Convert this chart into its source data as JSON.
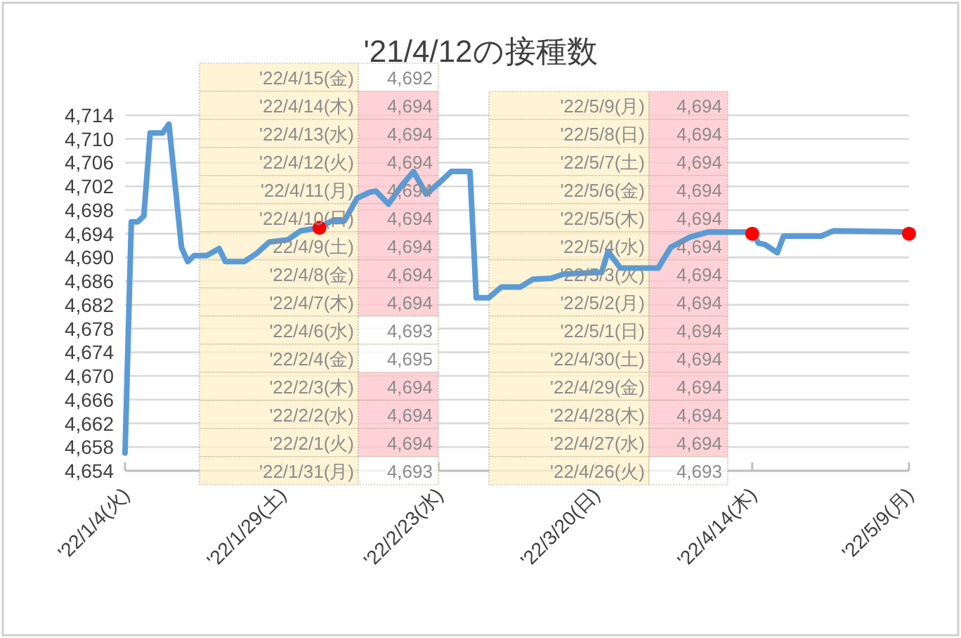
{
  "chart_data": [
    {
      "type": "line",
      "title": "'21/4/12の接種数",
      "xlim": [
        "2022-01-04",
        "2022-05-09"
      ],
      "xticks": [
        {
          "value": "2022-01-04",
          "label": "'22/1/4(火)"
        },
        {
          "value": "2022-01-29",
          "label": "'22/1/29(土)"
        },
        {
          "value": "2022-02-23",
          "label": "'22/2/23(水)"
        },
        {
          "value": "2022-03-20",
          "label": "'22/3/20(日)"
        },
        {
          "value": "2022-04-14",
          "label": "'22/4/14(木)"
        },
        {
          "value": "2022-05-09",
          "label": "'22/5/9(月)"
        }
      ],
      "ylim": [
        4654,
        4714
      ],
      "yticks": [
        {
          "value": 4654,
          "label": "4,654"
        },
        {
          "value": 4658,
          "label": "4,658"
        },
        {
          "value": 4662,
          "label": "4,662"
        },
        {
          "value": 4666,
          "label": "4,666"
        },
        {
          "value": 4670,
          "label": "4,670"
        },
        {
          "value": 4674,
          "label": "4,674"
        },
        {
          "value": 4678,
          "label": "4,678"
        },
        {
          "value": 4682,
          "label": "4,682"
        },
        {
          "value": 4686,
          "label": "4,686"
        },
        {
          "value": 4690,
          "label": "4,690"
        },
        {
          "value": 4694,
          "label": "4,694"
        },
        {
          "value": 4698,
          "label": "4,698"
        },
        {
          "value": 4702,
          "label": "4,702"
        },
        {
          "value": 4706,
          "label": "4,706"
        },
        {
          "value": 4710,
          "label": "4,710"
        },
        {
          "value": 4714,
          "label": "4,714"
        }
      ],
      "grid": "y",
      "series": [
        {
          "color": "#5b9bd5",
          "x": [
            "2022-01-04",
            "2022-01-05",
            "2022-01-06",
            "2022-01-07",
            "2022-01-08",
            "2022-01-10",
            "2022-01-11",
            "2022-01-13",
            "2022-01-14",
            "2022-01-15",
            "2022-01-17",
            "2022-01-19",
            "2022-01-20",
            "2022-01-23",
            "2022-01-25",
            "2022-01-27",
            "2022-01-30",
            "2022-02-01",
            "2022-02-04",
            "2022-02-06",
            "2022-02-08",
            "2022-02-10",
            "2022-02-12",
            "2022-02-13",
            "2022-02-15",
            "2022-02-17",
            "2022-02-19",
            "2022-02-21",
            "2022-02-23",
            "2022-02-25",
            "2022-02-28",
            "2022-03-01",
            "2022-03-03",
            "2022-03-05",
            "2022-03-08",
            "2022-03-10",
            "2022-03-13",
            "2022-03-15",
            "2022-03-21",
            "2022-03-22",
            "2022-03-24",
            "2022-03-30",
            "2022-04-01",
            "2022-04-04",
            "2022-04-07",
            "2022-04-14",
            "2022-04-15",
            "2022-04-16",
            "2022-04-18",
            "2022-04-19",
            "2022-04-25",
            "2022-04-27",
            "2022-05-09"
          ],
          "values": [
            4657,
            4696,
            4696,
            4697,
            4711,
            4711,
            4712.5,
            4691.7,
            4689.3,
            4690.3,
            4690.3,
            4691.5,
            4689.3,
            4689.3,
            4690.7,
            4692.6,
            4693,
            4694.5,
            4695,
            4696.2,
            4696.2,
            4700,
            4701,
            4701.2,
            4699,
            4702,
            4704.5,
            4700.7,
            4702.5,
            4704.5,
            4704.5,
            4683.2,
            4683.2,
            4685,
            4685,
            4686.3,
            4686.5,
            4687.2,
            4687.5,
            4691,
            4688.2,
            4688.2,
            4691.7,
            4693.4,
            4694.3,
            4694.3,
            4692.4,
            4692.2,
            4690.8,
            4693.6,
            4693.6,
            4694.5,
            4694.3
          ]
        },
        {
          "type": "scatter",
          "color": "#ff0000",
          "marker": "circle",
          "x": [
            "2022-02-04",
            "2022-04-14",
            "2022-05-09"
          ],
          "values": [
            4695,
            4694,
            4694
          ]
        }
      ]
    },
    {
      "type": "other",
      "annotations": [
        "'22/4/15(金)",
        "4,692",
        "'22/4/14(木)",
        "4,694",
        "'22/4/13(水)",
        "4,694",
        "'22/4/12(火)",
        "4,694",
        "'22/4/11(月)",
        "4,694",
        "'22/4/10(日)",
        "4,694",
        "'22/4/9(土)",
        "4,694",
        "'22/4/8(金)",
        "4,694",
        "'22/4/7(木)",
        "4,694",
        "'22/4/6(水)",
        "4,693",
        "'22/2/4(金)",
        "4,695",
        "'22/2/3(木)",
        "4,694",
        "'22/2/2(水)",
        "4,694",
        "'22/2/1(火)",
        "4,694",
        "'22/1/31(月)",
        "4,693"
      ]
    },
    {
      "type": "other",
      "annotations": [
        "'22/5/9(月)",
        "4,694",
        "'22/5/8(日)",
        "4,694",
        "'22/5/7(土)",
        "4,694",
        "'22/5/6(金)",
        "4,694",
        "'22/5/5(木)",
        "4,694",
        "'22/5/4(水)",
        "4,694",
        "'22/5/3(火)",
        "4,694",
        "'22/5/2(月)",
        "4,694",
        "'22/5/1(日)",
        "4,694",
        "'22/4/30(土)",
        "4,694",
        "'22/4/29(金)",
        "4,694",
        "'22/4/28(木)",
        "4,694",
        "'22/4/27(水)",
        "4,694",
        "'22/4/26(火)",
        "4,693"
      ]
    }
  ]
}
